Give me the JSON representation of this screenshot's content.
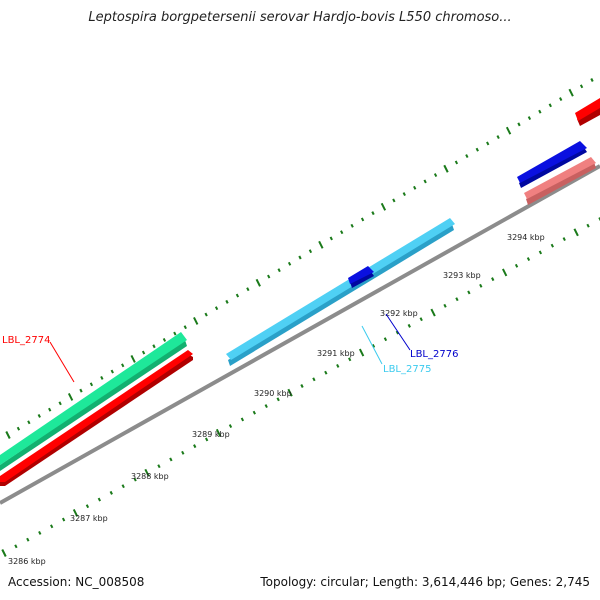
{
  "title": "Leptospira borgpetersenii serovar Hardjo-bovis L550 chromoso...",
  "footer": {
    "accession": "Accession: NC_008508",
    "stats": "Topology: circular; Length: 3,614,446 bp; Genes: 2,745"
  },
  "colors": {
    "backbone": "#8c8c8c",
    "ticks": "#1a7a1a",
    "red": "#ff0000",
    "green": "#1ee89a",
    "cyan": "#4fd0f4",
    "blue": "#0a10e0",
    "pink": "#f08080"
  },
  "scale_ticks": [
    {
      "label": "3286 kbp"
    },
    {
      "label": "3287 kbp"
    },
    {
      "label": "3288 kbp"
    },
    {
      "label": "3289 kbp"
    },
    {
      "label": "3290 kbp"
    },
    {
      "label": "3291 kbp"
    },
    {
      "label": "3292 kbp"
    },
    {
      "label": "3293 kbp"
    },
    {
      "label": "3294 kbp"
    }
  ],
  "gene_labels": [
    {
      "text": "LBL_2774",
      "color": "#ff0000"
    },
    {
      "text": "LBL_2775",
      "color": "#3ccbee"
    },
    {
      "text": "LBL_2776",
      "color": "#0000cc"
    }
  ]
}
